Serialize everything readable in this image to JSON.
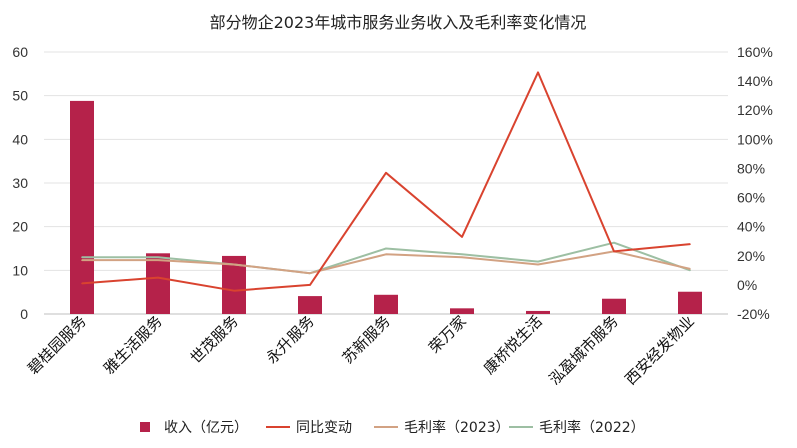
{
  "chart_data": {
    "type": "bar",
    "title": "部分物企2023年城市服务业务收入及毛利率变化情况",
    "categories": [
      "碧桂园服务",
      "雅生活服务",
      "世茂服务",
      "永升服务",
      "苏新服务",
      "荣万家",
      "康桥悦生活",
      "泓盈城市服务",
      "西安经发物业"
    ],
    "y_left": {
      "ylim": [
        0,
        60
      ],
      "ticks": [
        0,
        10,
        20,
        30,
        40,
        50,
        60
      ],
      "tick_labels": [
        "0",
        "10",
        "20",
        "30",
        "40",
        "50",
        "60"
      ]
    },
    "y_right": {
      "ylim": [
        -20,
        160
      ],
      "ticks": [
        -20,
        0,
        20,
        40,
        60,
        80,
        100,
        120,
        140,
        160
      ],
      "tick_labels": [
        "-20%",
        "0%",
        "20%",
        "40%",
        "60%",
        "80%",
        "100%",
        "120%",
        "140%",
        "160%"
      ]
    },
    "grid": true,
    "legend_position": "bottom",
    "series": [
      {
        "name": "收入（亿元）",
        "type": "bar",
        "axis": "left",
        "color": "#b5224a",
        "values": [
          48.8,
          13.9,
          13.3,
          4.1,
          4.4,
          1.3,
          0.7,
          3.5,
          5.1
        ]
      },
      {
        "name": "同比变动",
        "type": "line",
        "axis": "right",
        "color": "#d9432f",
        "values": [
          1,
          5,
          -4,
          0,
          77,
          33,
          146,
          23,
          28
        ]
      },
      {
        "name": "毛利率（2023）",
        "type": "line",
        "axis": "right",
        "color": "#d2a283",
        "values": [
          17,
          17,
          14,
          8,
          21,
          19,
          14,
          23,
          11
        ]
      },
      {
        "name": "毛利率（2022）",
        "type": "line",
        "axis": "right",
        "color": "#9dbfa3",
        "values": [
          19,
          19,
          14,
          8,
          25,
          21,
          16,
          29,
          10
        ]
      }
    ]
  }
}
